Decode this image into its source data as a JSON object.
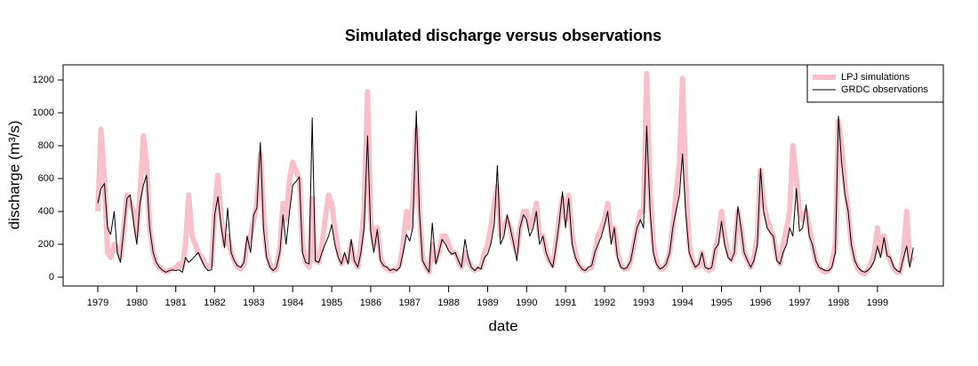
{
  "chart_data": {
    "type": "line",
    "title": "Simulated discharge versus observations",
    "xlabel": "date",
    "ylabel": "discharge (m³/s)",
    "legend": "top-right",
    "xlim": [
      1978.11,
      2000.69
    ],
    "ylim": [
      -54,
      1292
    ],
    "xticks": [
      1979,
      1980,
      1981,
      1982,
      1983,
      1984,
      1985,
      1986,
      1987,
      1988,
      1989,
      1990,
      1991,
      1992,
      1993,
      1994,
      1995,
      1996,
      1997,
      1998,
      1999
    ],
    "yticks": [
      0,
      200,
      400,
      600,
      800,
      1000,
      1200
    ],
    "x": [
      1979.0,
      1979.08,
      1979.17,
      1979.25,
      1979.33,
      1979.42,
      1979.5,
      1979.58,
      1979.67,
      1979.75,
      1979.83,
      1979.92,
      1980.0,
      1980.08,
      1980.17,
      1980.25,
      1980.33,
      1980.42,
      1980.5,
      1980.58,
      1980.67,
      1980.75,
      1980.83,
      1980.92,
      1981.0,
      1981.08,
      1981.17,
      1981.25,
      1981.33,
      1981.42,
      1981.5,
      1981.58,
      1981.67,
      1981.75,
      1981.83,
      1981.92,
      1982.0,
      1982.08,
      1982.17,
      1982.25,
      1982.33,
      1982.42,
      1982.5,
      1982.58,
      1982.67,
      1982.75,
      1982.83,
      1982.92,
      1983.0,
      1983.08,
      1983.17,
      1983.25,
      1983.33,
      1983.42,
      1983.5,
      1983.58,
      1983.67,
      1983.75,
      1983.83,
      1983.92,
      1984.0,
      1984.08,
      1984.17,
      1984.25,
      1984.33,
      1984.42,
      1984.5,
      1984.58,
      1984.67,
      1984.75,
      1984.83,
      1984.92,
      1985.0,
      1985.08,
      1985.17,
      1985.25,
      1985.33,
      1985.42,
      1985.5,
      1985.58,
      1985.67,
      1985.75,
      1985.83,
      1985.92,
      1986.0,
      1986.08,
      1986.17,
      1986.25,
      1986.33,
      1986.42,
      1986.5,
      1986.58,
      1986.67,
      1986.75,
      1986.83,
      1986.92,
      1987.0,
      1987.08,
      1987.17,
      1987.25,
      1987.33,
      1987.42,
      1987.5,
      1987.58,
      1987.67,
      1987.75,
      1987.83,
      1987.92,
      1988.0,
      1988.08,
      1988.17,
      1988.25,
      1988.33,
      1988.42,
      1988.5,
      1988.58,
      1988.67,
      1988.75,
      1988.83,
      1988.92,
      1989.0,
      1989.08,
      1989.17,
      1989.25,
      1989.33,
      1989.42,
      1989.5,
      1989.58,
      1989.67,
      1989.75,
      1989.83,
      1989.92,
      1990.0,
      1990.08,
      1990.17,
      1990.25,
      1990.33,
      1990.42,
      1990.5,
      1990.58,
      1990.67,
      1990.75,
      1990.83,
      1990.92,
      1991.0,
      1991.08,
      1991.17,
      1991.25,
      1991.33,
      1991.42,
      1991.5,
      1991.58,
      1991.67,
      1991.75,
      1991.83,
      1991.92,
      1992.0,
      1992.08,
      1992.17,
      1992.25,
      1992.33,
      1992.42,
      1992.5,
      1992.58,
      1992.67,
      1992.75,
      1992.83,
      1992.92,
      1993.0,
      1993.08,
      1993.17,
      1993.25,
      1993.33,
      1993.42,
      1993.5,
      1993.58,
      1993.67,
      1993.75,
      1993.83,
      1993.92,
      1994.0,
      1994.08,
      1994.17,
      1994.25,
      1994.33,
      1994.42,
      1994.5,
      1994.58,
      1994.67,
      1994.75,
      1994.83,
      1994.92,
      1995.0,
      1995.08,
      1995.17,
      1995.25,
      1995.33,
      1995.42,
      1995.5,
      1995.58,
      1995.67,
      1995.75,
      1995.83,
      1995.92,
      1996.0,
      1996.08,
      1996.17,
      1996.25,
      1996.33,
      1996.42,
      1996.5,
      1996.58,
      1996.67,
      1996.75,
      1996.83,
      1996.92,
      1997.0,
      1997.08,
      1997.17,
      1997.25,
      1997.33,
      1997.42,
      1997.5,
      1997.58,
      1997.67,
      1997.75,
      1997.83,
      1997.92,
      1998.0,
      1998.08,
      1998.17,
      1998.25,
      1998.33,
      1998.42,
      1998.5,
      1998.58,
      1998.67,
      1998.75,
      1998.83,
      1998.92,
      1999.0,
      1999.08,
      1999.17,
      1999.25,
      1999.33,
      1999.42,
      1999.5,
      1999.58,
      1999.67,
      1999.75,
      1999.83,
      1999.92
    ],
    "series": [
      {
        "name": "LPJ simulations",
        "color": "#f7c0cb",
        "values": [
          400,
          900,
          600,
          150,
          120,
          200,
          180,
          120,
          300,
          500,
          450,
          400,
          250,
          500,
          860,
          700,
          300,
          150,
          80,
          60,
          40,
          30,
          40,
          50,
          60,
          80,
          60,
          200,
          500,
          250,
          200,
          150,
          120,
          80,
          60,
          80,
          400,
          620,
          350,
          200,
          250,
          150,
          100,
          60,
          50,
          80,
          200,
          250,
          350,
          450,
          750,
          400,
          150,
          70,
          40,
          50,
          180,
          450,
          350,
          600,
          700,
          650,
          600,
          200,
          90,
          60,
          480,
          100,
          90,
          200,
          350,
          500,
          450,
          300,
          150,
          80,
          120,
          100,
          200,
          100,
          60,
          200,
          400,
          1130,
          350,
          200,
          300,
          120,
          70,
          50,
          40,
          40,
          50,
          80,
          200,
          400,
          300,
          450,
          900,
          400,
          120,
          60,
          30,
          200,
          100,
          150,
          250,
          250,
          200,
          150,
          150,
          100,
          60,
          150,
          100,
          60,
          40,
          50,
          60,
          150,
          200,
          300,
          450,
          550,
          250,
          300,
          350,
          300,
          200,
          150,
          300,
          400,
          400,
          300,
          350,
          450,
          250,
          250,
          150,
          100,
          70,
          200,
          350,
          480,
          350,
          500,
          250,
          150,
          80,
          50,
          40,
          50,
          60,
          150,
          250,
          300,
          350,
          450,
          250,
          300,
          150,
          70,
          50,
          50,
          100,
          200,
          300,
          400,
          400,
          1240,
          500,
          200,
          100,
          50,
          50,
          80,
          150,
          300,
          500,
          700,
          1210,
          600,
          200,
          100,
          60,
          70,
          150,
          60,
          40,
          50,
          150,
          250,
          400,
          250,
          150,
          100,
          150,
          400,
          300,
          150,
          100,
          60,
          120,
          250,
          650,
          450,
          350,
          300,
          250,
          120,
          80,
          200,
          300,
          400,
          800,
          600,
          400,
          350,
          400,
          300,
          200,
          100,
          60,
          40,
          30,
          40,
          80,
          200,
          950,
          800,
          550,
          400,
          200,
          100,
          50,
          30,
          20,
          40,
          80,
          150,
          300,
          150,
          250,
          150,
          100,
          50,
          30,
          30,
          150,
          400,
          100,
          120
        ]
      },
      {
        "name": "GRDC observations",
        "color": "#000000",
        "values": [
          450,
          540,
          570,
          300,
          260,
          400,
          150,
          90,
          300,
          480,
          500,
          330,
          200,
          450,
          560,
          620,
          300,
          150,
          90,
          60,
          40,
          30,
          40,
          45,
          40,
          45,
          30,
          120,
          90,
          110,
          130,
          150,
          100,
          60,
          40,
          45,
          380,
          490,
          300,
          180,
          420,
          150,
          100,
          70,
          60,
          90,
          250,
          150,
          380,
          420,
          820,
          300,
          120,
          60,
          40,
          60,
          150,
          380,
          200,
          400,
          560,
          580,
          610,
          150,
          90,
          80,
          970,
          100,
          90,
          150,
          200,
          250,
          320,
          200,
          120,
          80,
          150,
          80,
          230,
          100,
          60,
          150,
          300,
          860,
          280,
          150,
          290,
          100,
          70,
          60,
          40,
          50,
          40,
          60,
          150,
          260,
          220,
          300,
          1010,
          400,
          100,
          60,
          30,
          330,
          80,
          150,
          230,
          200,
          160,
          140,
          150,
          100,
          60,
          230,
          120,
          60,
          40,
          60,
          50,
          120,
          140,
          200,
          320,
          680,
          200,
          250,
          380,
          300,
          200,
          100,
          300,
          380,
          350,
          250,
          300,
          400,
          200,
          250,
          150,
          100,
          60,
          180,
          320,
          520,
          300,
          480,
          200,
          120,
          80,
          50,
          40,
          60,
          70,
          150,
          200,
          250,
          320,
          400,
          200,
          300,
          120,
          60,
          50,
          60,
          100,
          200,
          300,
          350,
          300,
          920,
          400,
          150,
          80,
          50,
          60,
          80,
          150,
          300,
          400,
          500,
          750,
          400,
          150,
          100,
          60,
          80,
          150,
          60,
          50,
          60,
          170,
          200,
          340,
          200,
          120,
          100,
          150,
          430,
          300,
          150,
          100,
          60,
          100,
          200,
          660,
          400,
          300,
          270,
          250,
          100,
          80,
          150,
          200,
          300,
          250,
          540,
          280,
          300,
          440,
          250,
          200,
          100,
          60,
          50,
          40,
          40,
          60,
          150,
          980,
          700,
          500,
          400,
          200,
          100,
          60,
          40,
          30,
          40,
          60,
          100,
          190,
          120,
          240,
          130,
          120,
          60,
          40,
          30,
          120,
          190,
          60,
          180
        ]
      }
    ]
  }
}
